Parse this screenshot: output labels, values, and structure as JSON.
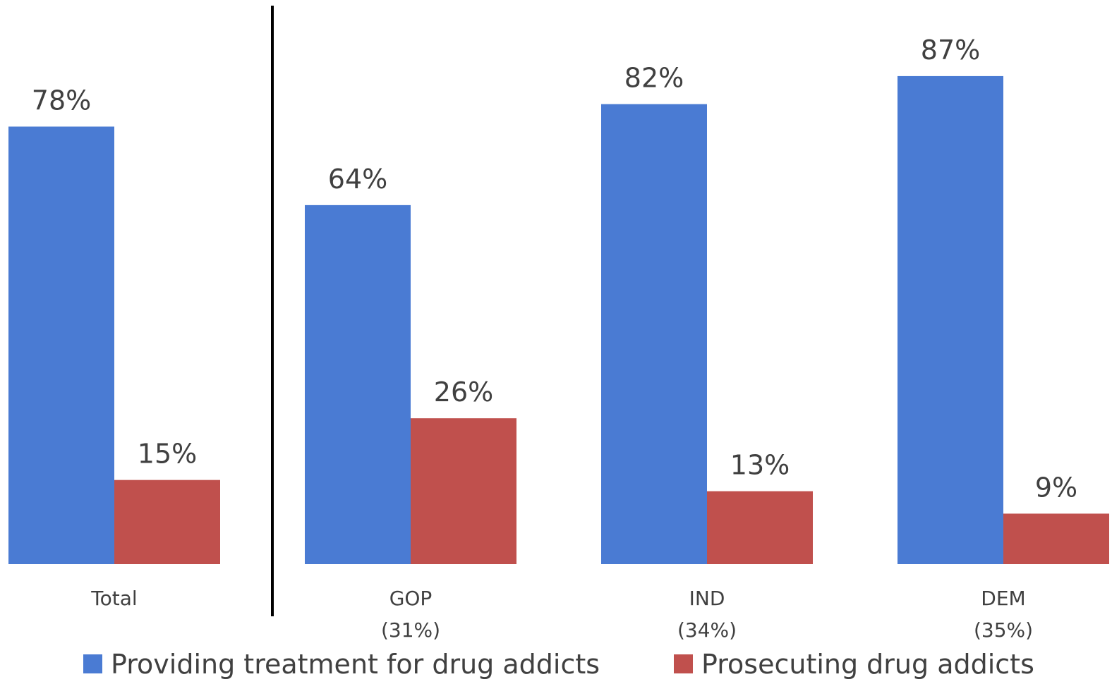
{
  "chart_data": {
    "type": "bar",
    "categories": [
      "Total",
      "GOP",
      "IND",
      "DEM"
    ],
    "category_sublabels": [
      "",
      "(31%)",
      "(34%)",
      "(35%)"
    ],
    "series": [
      {
        "name": "Providing treatment for drug addicts",
        "values": [
          78,
          64,
          82,
          87
        ],
        "labels": [
          "78%",
          "64%",
          "82%",
          "87%"
        ],
        "color": "#4A7BD3"
      },
      {
        "name": "Prosecuting drug addicts",
        "values": [
          15,
          26,
          13,
          9
        ],
        "labels": [
          "15%",
          "26%",
          "13%",
          "9%"
        ],
        "color": "#C0504D"
      }
    ],
    "ylim": [
      0,
      100
    ],
    "grid": false,
    "legend": "bottom",
    "separator_after_category": "Total"
  }
}
